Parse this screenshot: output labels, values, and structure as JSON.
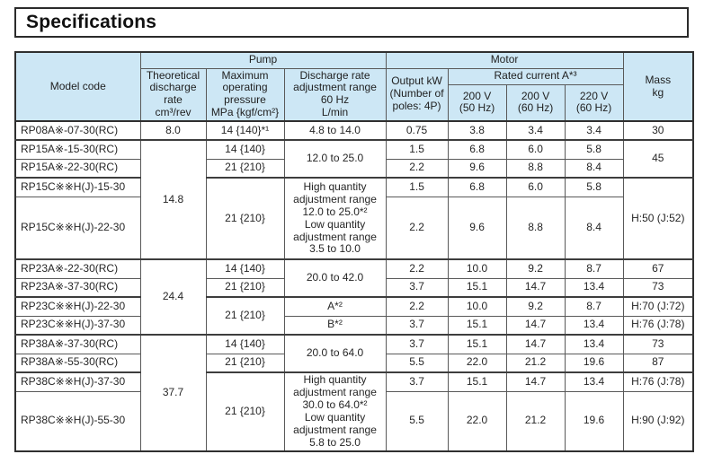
{
  "title": "Specifications",
  "colors": {
    "header_bg": "#cde7f5",
    "border_dark": "#2f2f2f",
    "border_inner": "#595959",
    "text": "#222222"
  },
  "table": {
    "header": {
      "model_code": "Model code",
      "pump_group": "Pump",
      "motor_group": "Motor",
      "rated_current": "Rated current A*³",
      "mass": "Mass\nkg",
      "pump_cols": [
        "Theoretical\ndischarge\nrate\ncm³/rev",
        "Maximum\noperating\npressure\nMPa {kgf/cm²}",
        "Discharge rate\nadjustment range\n60 Hz\nL/min"
      ],
      "output_kw": "Output kW\n(Number of\npoles: 4P)",
      "voltage_cols": [
        "200 V\n(50 Hz)",
        "200 V\n(60 Hz)",
        "220 V\n(60 Hz)"
      ]
    },
    "rows": [
      {
        "cells": [
          {
            "col": "model",
            "text": "RP08A※-07-30(RC)"
          },
          {
            "col": "theoretical",
            "text": "8.0"
          },
          {
            "col": "pressure",
            "text": "14 {140}*¹"
          },
          {
            "col": "discharge",
            "text": "4.8 to 14.0"
          },
          {
            "col": "output_kw",
            "text": "0.75"
          },
          {
            "col": "current_200_50",
            "text": "3.8"
          },
          {
            "col": "current_200_60",
            "text": "3.4"
          },
          {
            "col": "current_220_60",
            "text": "3.4"
          },
          {
            "col": "mass",
            "text": "30"
          }
        ]
      },
      {
        "group_start": true,
        "cells": [
          {
            "col": "model",
            "text": "RP15A※-15-30(RC)"
          },
          {
            "col": "theoretical",
            "text": "14.8",
            "rowspan": 4
          },
          {
            "col": "pressure",
            "text": "14 {140}"
          },
          {
            "col": "discharge",
            "text": "12.0 to 25.0",
            "rowspan": 2
          },
          {
            "col": "output_kw",
            "text": "1.5"
          },
          {
            "col": "current_200_50",
            "text": "6.8"
          },
          {
            "col": "current_200_60",
            "text": "6.0"
          },
          {
            "col": "current_220_60",
            "text": "5.8"
          },
          {
            "col": "mass",
            "text": "45",
            "rowspan": 2
          }
        ]
      },
      {
        "cells": [
          {
            "col": "model",
            "text": "RP15A※-22-30(RC)"
          },
          {
            "col": "pressure",
            "text": "21 {210}"
          },
          {
            "col": "output_kw",
            "text": "2.2"
          },
          {
            "col": "current_200_50",
            "text": "9.6"
          },
          {
            "col": "current_200_60",
            "text": "8.8"
          },
          {
            "col": "current_220_60",
            "text": "8.4"
          }
        ]
      },
      {
        "group_start": true,
        "cells": [
          {
            "col": "model",
            "text": "RP15C※※H(J)-15-30"
          },
          {
            "col": "pressure",
            "text": "21 {210}",
            "rowspan": 2
          },
          {
            "col": "discharge",
            "text": "High quantity\nadjustment range\n12.0 to 25.0*²\nLow quantity\nadjustment range\n3.5 to 10.0",
            "rowspan": 2
          },
          {
            "col": "output_kw",
            "text": "1.5"
          },
          {
            "col": "current_200_50",
            "text": "6.8"
          },
          {
            "col": "current_200_60",
            "text": "6.0"
          },
          {
            "col": "current_220_60",
            "text": "5.8"
          },
          {
            "col": "mass",
            "text": "H:50 (J:52)",
            "rowspan": 2
          }
        ]
      },
      {
        "tall": 70,
        "cells": [
          {
            "col": "model",
            "text": "RP15C※※H(J)-22-30"
          },
          {
            "col": "output_kw",
            "text": "2.2"
          },
          {
            "col": "current_200_50",
            "text": "9.6"
          },
          {
            "col": "current_200_60",
            "text": "8.8"
          },
          {
            "col": "current_220_60",
            "text": "8.4"
          }
        ]
      },
      {
        "group_start": true,
        "cells": [
          {
            "col": "model",
            "text": "RP23A※-22-30(RC)"
          },
          {
            "col": "theoretical",
            "text": "24.4",
            "rowspan": 4
          },
          {
            "col": "pressure",
            "text": "14 {140}"
          },
          {
            "col": "discharge",
            "text": "20.0 to 42.0",
            "rowspan": 2
          },
          {
            "col": "output_kw",
            "text": "2.2"
          },
          {
            "col": "current_200_50",
            "text": "10.0"
          },
          {
            "col": "current_200_60",
            "text": "9.2"
          },
          {
            "col": "current_220_60",
            "text": "8.7"
          },
          {
            "col": "mass",
            "text": "67"
          }
        ]
      },
      {
        "cells": [
          {
            "col": "model",
            "text": "RP23A※-37-30(RC)"
          },
          {
            "col": "pressure",
            "text": "21 {210}"
          },
          {
            "col": "output_kw",
            "text": "3.7"
          },
          {
            "col": "current_200_50",
            "text": "15.1"
          },
          {
            "col": "current_200_60",
            "text": "14.7"
          },
          {
            "col": "current_220_60",
            "text": "13.4"
          },
          {
            "col": "mass",
            "text": "73"
          }
        ]
      },
      {
        "group_start": true,
        "cells": [
          {
            "col": "model",
            "text": "RP23C※※H(J)-22-30"
          },
          {
            "col": "pressure",
            "text": "21 {210}",
            "rowspan": 2
          },
          {
            "col": "discharge",
            "text": "A*²"
          },
          {
            "col": "output_kw",
            "text": "2.2"
          },
          {
            "col": "current_200_50",
            "text": "10.0"
          },
          {
            "col": "current_200_60",
            "text": "9.2"
          },
          {
            "col": "current_220_60",
            "text": "8.7"
          },
          {
            "col": "mass",
            "text": "H:70 (J:72)"
          }
        ]
      },
      {
        "cells": [
          {
            "col": "model",
            "text": "RP23C※※H(J)-37-30"
          },
          {
            "col": "discharge",
            "text": "B*²"
          },
          {
            "col": "output_kw",
            "text": "3.7"
          },
          {
            "col": "current_200_50",
            "text": "15.1"
          },
          {
            "col": "current_200_60",
            "text": "14.7"
          },
          {
            "col": "current_220_60",
            "text": "13.4"
          },
          {
            "col": "mass",
            "text": "H:76 (J:78)"
          }
        ]
      },
      {
        "group_start": true,
        "cells": [
          {
            "col": "model",
            "text": "RP38A※-37-30(RC)"
          },
          {
            "col": "theoretical",
            "text": "37.7",
            "rowspan": 4
          },
          {
            "col": "pressure",
            "text": "14 {140}"
          },
          {
            "col": "discharge",
            "text": "20.0 to 64.0",
            "rowspan": 2
          },
          {
            "col": "output_kw",
            "text": "3.7"
          },
          {
            "col": "current_200_50",
            "text": "15.1"
          },
          {
            "col": "current_200_60",
            "text": "14.7"
          },
          {
            "col": "current_220_60",
            "text": "13.4"
          },
          {
            "col": "mass",
            "text": "73"
          }
        ]
      },
      {
        "cells": [
          {
            "col": "model",
            "text": "RP38A※-55-30(RC)"
          },
          {
            "col": "pressure",
            "text": "21 {210}"
          },
          {
            "col": "output_kw",
            "text": "5.5"
          },
          {
            "col": "current_200_50",
            "text": "22.0"
          },
          {
            "col": "current_200_60",
            "text": "21.2"
          },
          {
            "col": "current_220_60",
            "text": "19.6"
          },
          {
            "col": "mass",
            "text": "87"
          }
        ]
      },
      {
        "group_start": true,
        "cells": [
          {
            "col": "model",
            "text": "RP38C※※H(J)-37-30"
          },
          {
            "col": "pressure",
            "text": "21 {210}",
            "rowspan": 2
          },
          {
            "col": "discharge",
            "text": "High quantity\nadjustment range\n30.0 to 64.0*²\nLow quantity\nadjustment range\n5.8 to 25.0",
            "rowspan": 2
          },
          {
            "col": "output_kw",
            "text": "3.7"
          },
          {
            "col": "current_200_50",
            "text": "15.1"
          },
          {
            "col": "current_200_60",
            "text": "14.7"
          },
          {
            "col": "current_220_60",
            "text": "13.4"
          },
          {
            "col": "mass",
            "text": "H:76 (J:78)"
          }
        ]
      },
      {
        "tall": 65,
        "cells": [
          {
            "col": "model",
            "text": "RP38C※※H(J)-55-30"
          },
          {
            "col": "output_kw",
            "text": "5.5"
          },
          {
            "col": "current_200_50",
            "text": "22.0"
          },
          {
            "col": "current_200_60",
            "text": "21.2"
          },
          {
            "col": "current_220_60",
            "text": "19.6"
          },
          {
            "col": "mass",
            "text": "H:90 (J:92)"
          }
        ]
      }
    ]
  }
}
